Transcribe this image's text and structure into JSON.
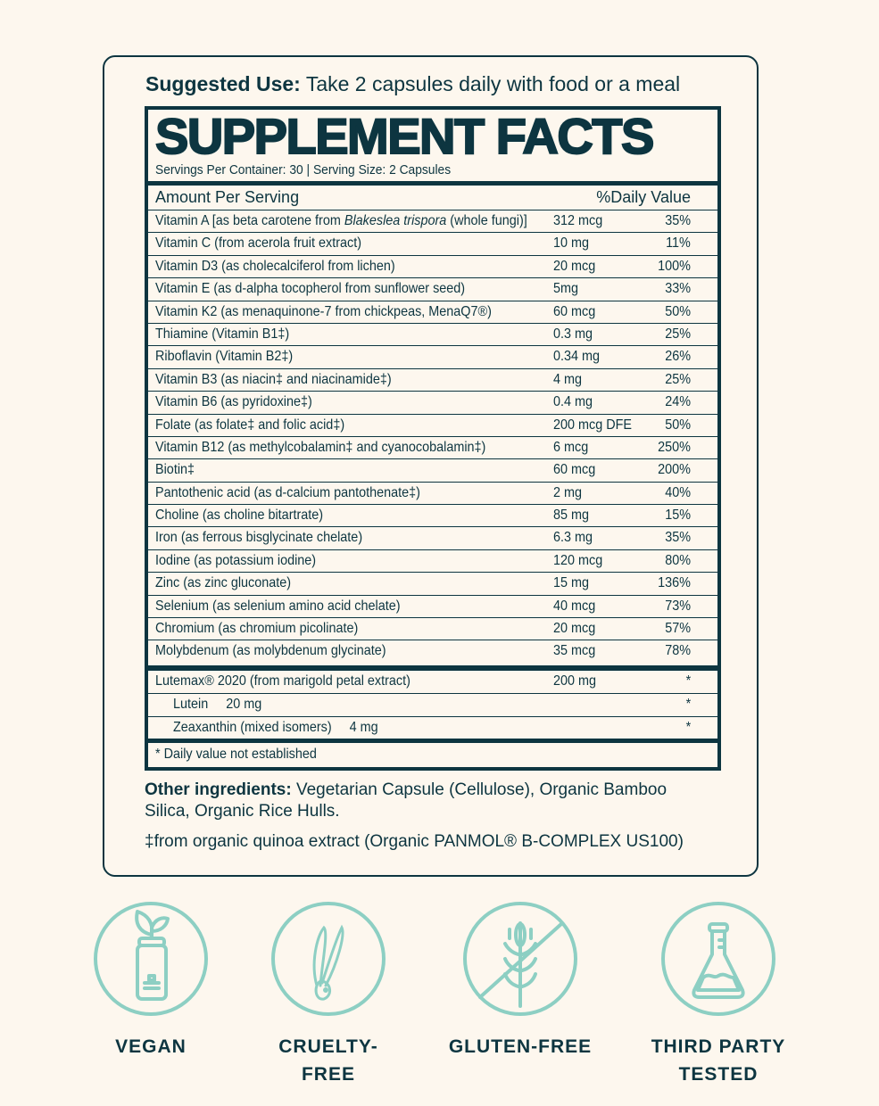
{
  "suggested_use": {
    "label": "Suggested Use:",
    "text": "Take 2 capsules daily with food or a meal"
  },
  "facts": {
    "title": "SUPPLEMENT FACTS",
    "servings": "Servings Per Container: 30  |  Serving Size: 2 Capsules",
    "amount_header": "Amount Per Serving",
    "dv_header": "%Daily Value",
    "items": [
      {
        "pre": "Vitamin A [as beta carotene from ",
        "italic": "Blakeslea trispora",
        "post": " (whole fungi)]",
        "amount": "312 mcg",
        "dv": "35%"
      },
      {
        "pre": "Vitamin C (from acerola fruit extract)",
        "amount": "10 mg",
        "dv": "11%"
      },
      {
        "pre": "Vitamin D3 (as cholecalciferol from lichen)",
        "amount": "20 mcg",
        "dv": "100%"
      },
      {
        "pre": "Vitamin E (as d-alpha tocopherol from sunflower seed)",
        "amount": "5mg",
        "dv": "33%"
      },
      {
        "pre": "Vitamin K2 (as menaquinone-7 from chickpeas, MenaQ7®)",
        "amount": "60 mcg",
        "dv": "50%"
      },
      {
        "pre": "Thiamine (Vitamin B1‡)",
        "amount": "0.3 mg",
        "dv": "25%"
      },
      {
        "pre": "Riboflavin (Vitamin B2‡)",
        "amount": "0.34 mg",
        "dv": "26%"
      },
      {
        "pre": "Vitamin B3 (as niacin‡ and niacinamide‡)",
        "amount": "4 mg",
        "dv": "25%"
      },
      {
        "pre": "Vitamin B6 (as pyridoxine‡)",
        "amount": "0.4 mg",
        "dv": "24%"
      },
      {
        "pre": "Folate (as folate‡ and folic acid‡)",
        "amount": "200 mcg DFE",
        "dv": "50%"
      },
      {
        "pre": "Vitamin B12 (as methylcobalamin‡ and cyanocobalamin‡)",
        "amount": "6 mcg",
        "dv": "250%"
      },
      {
        "pre": "Biotin‡",
        "amount": "60 mcg",
        "dv": "200%"
      },
      {
        "pre": "Pantothenic acid (as d-calcium pantothenate‡)",
        "amount": "2 mg",
        "dv": "40%"
      },
      {
        "pre": "Choline (as choline bitartrate)",
        "amount": "85 mg",
        "dv": "15%"
      },
      {
        "pre": "Iron (as ferrous bisglycinate chelate)",
        "amount": "6.3 mg",
        "dv": "35%"
      },
      {
        "pre": "Iodine (as potassium iodine)",
        "amount": "120 mcg",
        "dv": "80%"
      },
      {
        "pre": "Zinc (as zinc gluconate)",
        "amount": "15 mg",
        "dv": "136%"
      },
      {
        "pre": "Selenium (as selenium amino acid chelate)",
        "amount": "40 mcg",
        "dv": "73%"
      },
      {
        "pre": "Chromium (as chromium picolinate)",
        "amount": "20 mcg",
        "dv": "57%"
      },
      {
        "pre": "Molybdenum (as molybdenum glycinate)",
        "amount": "35 mcg",
        "dv": "78%"
      }
    ],
    "blend": [
      {
        "pre": "Lutemax® 2020 (from marigold petal extract)",
        "amount": "200 mg",
        "dv": "*"
      },
      {
        "pre": "Lutein     20 mg",
        "amount": "",
        "dv": "*",
        "sub": true
      },
      {
        "pre": "Zeaxanthin (mixed isomers)     4 mg",
        "amount": "",
        "dv": "*",
        "sub": true
      }
    ],
    "footnote": "* Daily value not established"
  },
  "other": {
    "label": "Other ingredients:",
    "text": "Vegetarian Capsule (Cellulose), Organic Bamboo Silica, Organic Rice Hulls."
  },
  "quinoa_note": "‡from organic quinoa extract (Organic PANMOL® B-COMPLEX US100)",
  "badges": [
    {
      "icon": "vegan-icon",
      "label": "VEGAN"
    },
    {
      "icon": "cruelty-free-icon",
      "label": "CRUELTY-\nFREE"
    },
    {
      "icon": "gluten-free-icon",
      "label": "GLUTEN-FREE"
    },
    {
      "icon": "third-party-tested-icon",
      "label": "THIRD PARTY\nTESTED"
    }
  ],
  "colors": {
    "ink": "#0d3540",
    "background": "#fdf7ee",
    "teal": "#8dcfc3"
  }
}
